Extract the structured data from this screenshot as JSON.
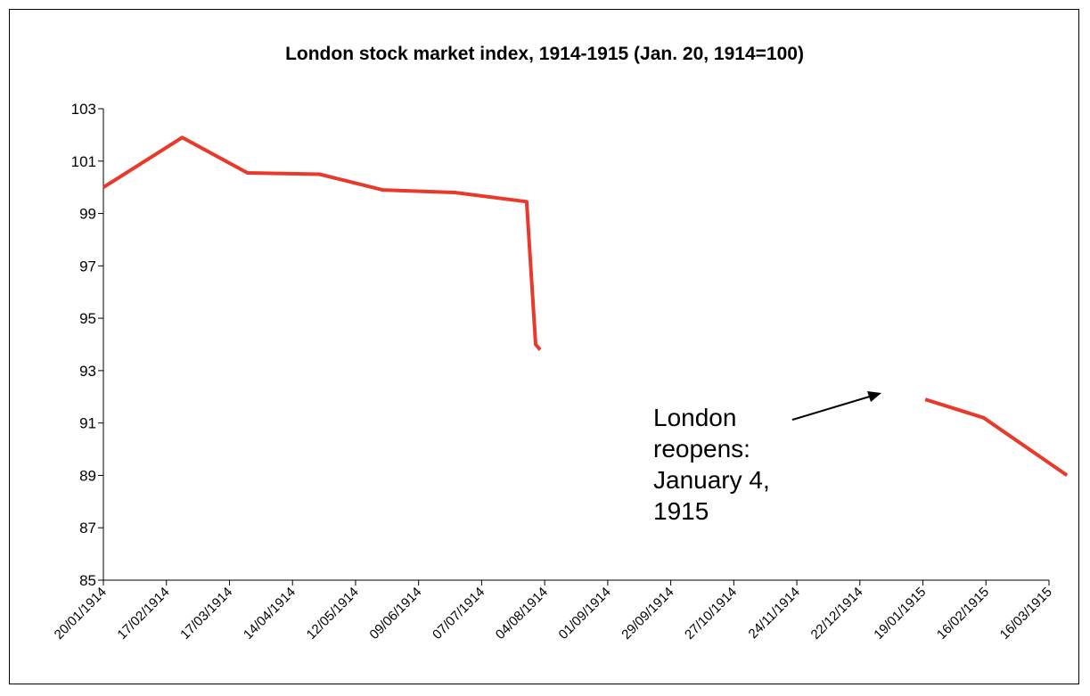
{
  "chart_data": {
    "type": "line",
    "title": "London stock market index, 1914-1915 (Jan. 20, 1914=100)",
    "xlabel": "",
    "ylabel": "",
    "ylim": [
      85,
      103
    ],
    "yticks": [
      "103",
      "101",
      "99",
      "97",
      "95",
      "93",
      "91",
      "89",
      "87",
      "85"
    ],
    "x_categories": [
      "20/01/1914",
      "17/02/1914",
      "17/03/1914",
      "14/04/1914",
      "12/05/1914",
      "09/06/1914",
      "07/07/1914",
      "04/08/1914",
      "01/09/1914",
      "29/09/1914",
      "27/10/1914",
      "24/11/1914",
      "22/12/1914",
      "19/01/1915",
      "16/02/1915",
      "16/03/1915"
    ],
    "grid": false,
    "legend": "none",
    "line_color": "#e8392a",
    "series": [
      {
        "segments": [
          [
            {
              "x": "1914-01-20",
              "y": 100.0
            },
            {
              "x": "1914-02-24",
              "y": 101.9
            },
            {
              "x": "1914-03-25",
              "y": 100.55
            },
            {
              "x": "1914-04-26",
              "y": 100.5
            },
            {
              "x": "1914-05-24",
              "y": 99.9
            },
            {
              "x": "1914-06-25",
              "y": 99.8
            },
            {
              "x": "1914-07-27",
              "y": 99.45
            },
            {
              "x": "1914-07-31",
              "y": 94.0
            },
            {
              "x": "1914-08-02",
              "y": 93.8
            }
          ],
          [
            {
              "x": "1915-01-20",
              "y": 91.9
            },
            {
              "x": "1915-02-15",
              "y": 91.2
            },
            {
              "x": "1915-03-24",
              "y": 89.0
            }
          ]
        ]
      }
    ],
    "annotation": {
      "lines": [
        "London",
        "reopens:",
        "January 4,",
        "1915"
      ]
    }
  }
}
